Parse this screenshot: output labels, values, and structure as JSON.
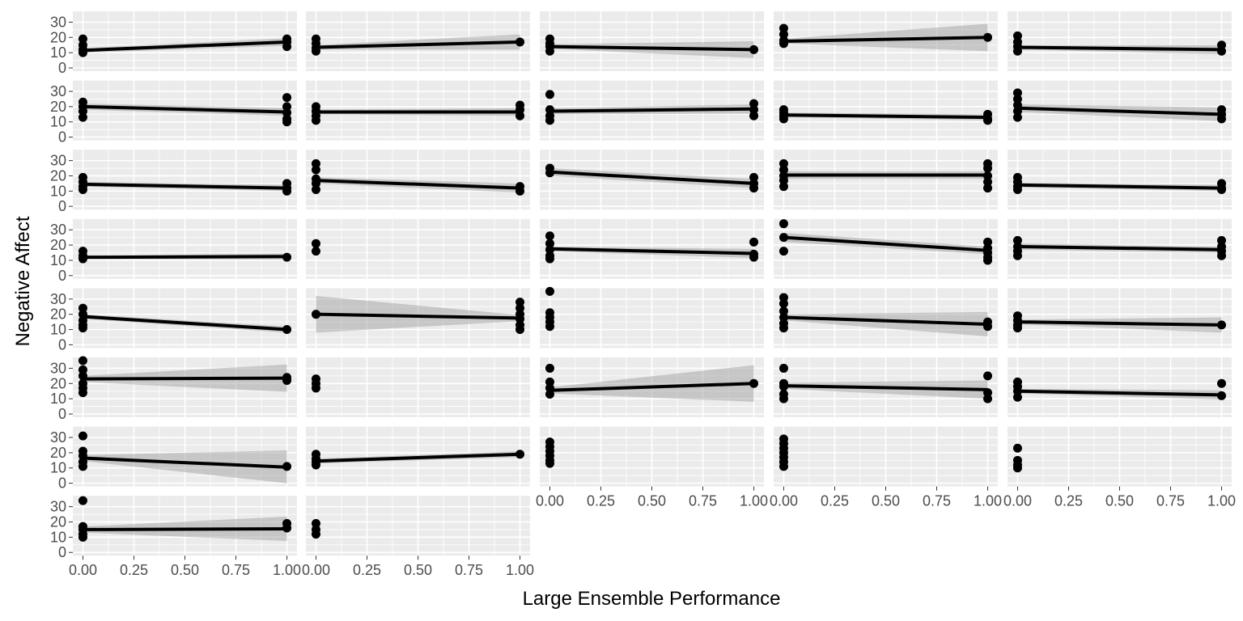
{
  "chart_data": {
    "type": "scatter",
    "subtype": "faceted scatter with linear fit lines and confidence bands",
    "xlabel": "Large Ensemble Performance",
    "ylabel": "Negative Affect",
    "facet_grid": {
      "columns": 5,
      "rows": 8,
      "panel_count": 37
    },
    "xlim": [
      0,
      1
    ],
    "ylim": [
      0,
      35
    ],
    "x_ticks": [
      "0.00",
      "0.25",
      "0.50",
      "0.75",
      "1.00"
    ],
    "y_ticks": [
      "0",
      "10",
      "20",
      "30"
    ],
    "grid": "on",
    "colors": {
      "panel_background": "#ebebeb",
      "grid_line": "#ffffff",
      "point": "#000000",
      "fit_line": "#000000",
      "ribbon": "#999999",
      "tick_text": "#4d4d4d"
    },
    "panels": [
      {
        "y0": [
          19,
          15,
          12,
          10
        ],
        "y1": [
          19,
          17,
          14
        ],
        "fit": [
          11.5,
          17
        ],
        "se": [
          1.5,
          2.5
        ]
      },
      {
        "y0": [
          19,
          16,
          13,
          11
        ],
        "y1": [
          17
        ],
        "fit": [
          13.5,
          17
        ],
        "se": [
          1.5,
          5
        ]
      },
      {
        "y0": [
          19,
          16,
          14,
          11
        ],
        "y1": [
          12
        ],
        "fit": [
          14,
          12
        ],
        "se": [
          1.5,
          5.5
        ]
      },
      {
        "y0": [
          26,
          22,
          18,
          16
        ],
        "y1": [
          20
        ],
        "fit": [
          17.5,
          20
        ],
        "se": [
          1.5,
          9
        ]
      },
      {
        "y0": [
          21,
          17,
          14,
          11
        ],
        "y1": [
          15,
          11
        ],
        "fit": [
          13.5,
          12
        ],
        "se": [
          1.5,
          3
        ]
      },
      {
        "y0": [
          23,
          20,
          17,
          13
        ],
        "y1": [
          26,
          20,
          16,
          12,
          10
        ],
        "fit": [
          20,
          16.5
        ],
        "se": [
          2,
          2.5
        ]
      },
      {
        "y0": [
          20,
          17,
          14,
          11
        ],
        "y1": [
          21,
          18,
          14
        ],
        "fit": [
          16.5,
          16.5
        ],
        "se": [
          1.5,
          2.5
        ]
      },
      {
        "y0": [
          28,
          18,
          14,
          11
        ],
        "y1": [
          22,
          18,
          14
        ],
        "fit": [
          17,
          18.5
        ],
        "se": [
          2,
          3
        ]
      },
      {
        "y0": [
          18,
          16,
          14,
          12
        ],
        "y1": [
          15,
          12,
          11
        ],
        "fit": [
          14.5,
          13
        ],
        "se": [
          1.5,
          2
        ]
      },
      {
        "y0": [
          29,
          25,
          21,
          17,
          13
        ],
        "y1": [
          18,
          15,
          12
        ],
        "fit": [
          19,
          15
        ],
        "se": [
          2.5,
          4.5
        ]
      },
      {
        "y0": [
          19,
          16,
          13,
          11
        ],
        "y1": [
          15,
          12,
          10
        ],
        "fit": [
          14.5,
          12
        ],
        "se": [
          1.5,
          2
        ]
      },
      {
        "y0": [
          28,
          24,
          18,
          15,
          11
        ],
        "y1": [
          13,
          10
        ],
        "fit": [
          17,
          12
        ],
        "se": [
          2,
          3
        ]
      },
      {
        "y0": [
          25,
          22
        ],
        "y1": [
          19,
          15,
          12
        ],
        "fit": [
          22.5,
          15
        ],
        "se": [
          2.5,
          3
        ]
      },
      {
        "y0": [
          28,
          24,
          20,
          17,
          13
        ],
        "y1": [
          28,
          25,
          20,
          16,
          12
        ],
        "fit": [
          20.5,
          20.5
        ],
        "se": [
          2.5,
          2.5
        ]
      },
      {
        "y0": [
          19,
          16,
          13,
          11
        ],
        "y1": [
          15,
          12,
          11
        ],
        "fit": [
          14,
          12
        ],
        "se": [
          1.5,
          2
        ]
      },
      {
        "y0": [
          16,
          13,
          11
        ],
        "y1": [
          12
        ],
        "fit": [
          12,
          12.5
        ],
        "se": [
          1,
          2
        ]
      },
      {
        "y0": [
          21,
          16
        ],
        "y1": [],
        "fit": null,
        "se": null
      },
      {
        "y0": [
          26,
          21,
          17,
          13,
          11
        ],
        "y1": [
          22,
          14,
          12
        ],
        "fit": [
          17.5,
          14.5
        ],
        "se": [
          1.5,
          3
        ]
      },
      {
        "y0": [
          34,
          25,
          16
        ],
        "y1": [
          22,
          18,
          15,
          12,
          10
        ],
        "fit": [
          25,
          16.5
        ],
        "se": [
          3,
          2.5
        ]
      },
      {
        "y0": [
          23,
          19,
          16,
          13
        ],
        "y1": [
          23,
          19,
          16,
          13
        ],
        "fit": [
          19,
          17
        ],
        "se": [
          2,
          2
        ]
      },
      {
        "y0": [
          24,
          20,
          16,
          13,
          11
        ],
        "y1": [
          10
        ],
        "fit": [
          18.5,
          10
        ],
        "se": [
          1.5,
          2
        ]
      },
      {
        "y0": [
          20
        ],
        "y1": [
          28,
          24,
          20,
          17,
          13,
          10
        ],
        "fit": [
          20,
          17.5
        ],
        "se": [
          12,
          2
        ]
      },
      {
        "y0": [
          35,
          21,
          18,
          15,
          12
        ],
        "y1": [],
        "fit": null,
        "se": null
      },
      {
        "y0": [
          31,
          27,
          22,
          18,
          14,
          11
        ],
        "y1": [
          15,
          12
        ],
        "fit": [
          18,
          13.5
        ],
        "se": [
          2,
          8
        ]
      },
      {
        "y0": [
          19,
          16,
          13,
          11
        ],
        "y1": [
          13
        ],
        "fit": [
          15,
          13
        ],
        "se": [
          1.5,
          5
        ]
      },
      {
        "y0": [
          35,
          29,
          25,
          20,
          17,
          14
        ],
        "y1": [
          24,
          22
        ],
        "fit": [
          23,
          23.5
        ],
        "se": [
          2,
          9
        ]
      },
      {
        "y0": [
          23,
          20,
          17
        ],
        "y1": [],
        "fit": null,
        "se": null
      },
      {
        "y0": [
          30,
          21,
          17,
          13
        ],
        "y1": [
          20
        ],
        "fit": [
          15.5,
          20
        ],
        "se": [
          2,
          12
        ]
      },
      {
        "y0": [
          30,
          20,
          18,
          13,
          10
        ],
        "y1": [
          25,
          14,
          10
        ],
        "fit": [
          18.5,
          16
        ],
        "se": [
          2,
          6
        ]
      },
      {
        "y0": [
          21,
          18,
          15,
          11
        ],
        "y1": [
          20,
          12
        ],
        "fit": [
          15,
          12.5
        ],
        "se": [
          1.5,
          3
        ]
      },
      {
        "y0": [
          31,
          21,
          18,
          14,
          11
        ],
        "y1": [
          11
        ],
        "fit": [
          16.5,
          10.5
        ],
        "se": [
          2,
          11
        ]
      },
      {
        "y0": [
          19,
          16,
          14,
          12
        ],
        "y1": [
          19
        ],
        "fit": [
          14.5,
          19
        ],
        "se": [
          1.5,
          2
        ]
      },
      {
        "y0": [
          27,
          24,
          21,
          18,
          15,
          13
        ],
        "y1": [],
        "fit": null,
        "se": null
      },
      {
        "y0": [
          29,
          26,
          23,
          20,
          17,
          14,
          11
        ],
        "y1": [],
        "fit": null,
        "se": null
      },
      {
        "y0": [
          23,
          15,
          12,
          10
        ],
        "y1": [],
        "fit": null,
        "se": null
      },
      {
        "y0": [
          34,
          17,
          15,
          12,
          10
        ],
        "y1": [
          19,
          16
        ],
        "fit": [
          15,
          15.5
        ],
        "se": [
          2,
          8
        ]
      },
      {
        "y0": [
          19,
          15,
          12
        ],
        "y1": [],
        "fit": null,
        "se": null
      }
    ]
  }
}
